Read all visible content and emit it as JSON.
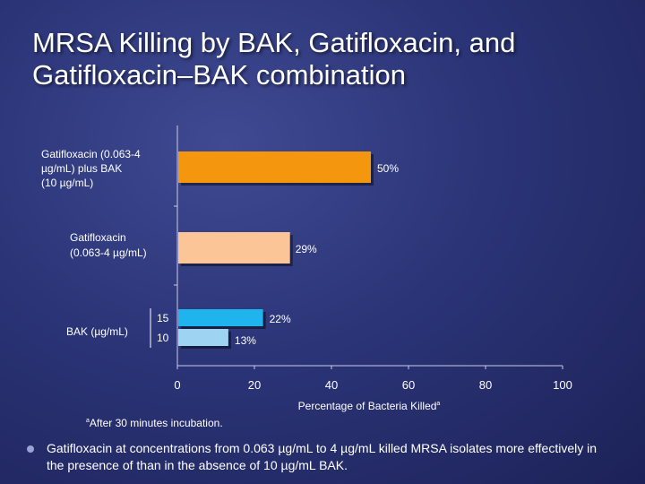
{
  "slide": {
    "title_line1": "MRSA Killing by BAK, Gatifloxacin, and",
    "title_line2": "Gatifloxacin–BAK combination",
    "footnote_marker": "a",
    "footnote_text": "After 30 minutes incubation.",
    "bullet_text": "Gatifloxacin at concentrations from 0.063 µg/mL to 4 µg/mL killed MRSA isolates more effectively in the presence of than in the absence of 10 µg/mL BAK."
  },
  "chart_data": {
    "type": "bar",
    "orientation": "horizontal",
    "xlabel": "Percentage of Bacteria Killed",
    "xlabel_marker": "a",
    "xlim": [
      0,
      100
    ],
    "xticks": [
      0,
      20,
      40,
      60,
      80,
      100
    ],
    "groups": [
      {
        "label_lines": [
          "Gatifloxacin (0.063-4",
          "µg/mL) plus BAK",
          "(10  µg/mL)"
        ],
        "bars": [
          {
            "sublabel": "",
            "value": 50,
            "value_label": "50%",
            "color": "#f5960f"
          }
        ]
      },
      {
        "label_lines": [
          "Gatifloxacin",
          "(0.063-4 µg/mL)"
        ],
        "bars": [
          {
            "sublabel": "",
            "value": 29,
            "value_label": "29%",
            "color": "#fbc597"
          }
        ]
      },
      {
        "label_lines": [
          "BAK (µg/mL)"
        ],
        "bars": [
          {
            "sublabel": "15",
            "value": 22,
            "value_label": "22%",
            "color": "#1fb4ee"
          },
          {
            "sublabel": "10",
            "value": 13,
            "value_label": "13%",
            "color": "#9fd3f2"
          }
        ]
      }
    ]
  }
}
